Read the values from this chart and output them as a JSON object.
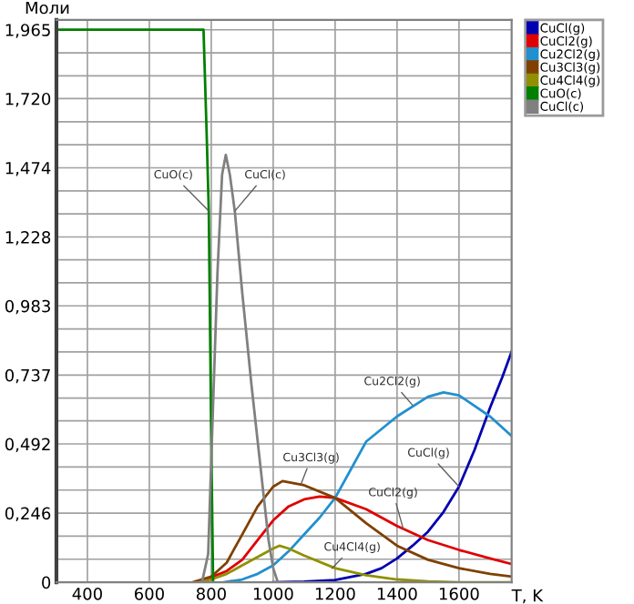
{
  "chart_data": {
    "type": "line",
    "ylabel": "Моли",
    "xlabel": "T, K",
    "xlim": [
      300,
      1770
    ],
    "xticks": [
      400,
      600,
      800,
      1000,
      1200,
      1400,
      1600
    ],
    "ylim": [
      0,
      2.0
    ],
    "yticks": [
      {
        "value": 0,
        "label": "0"
      },
      {
        "value": 0.082,
        "label": null
      },
      {
        "value": 0.164,
        "label": null
      },
      {
        "value": 0.246,
        "label": "0,246"
      },
      {
        "value": 0.328,
        "label": null
      },
      {
        "value": 0.41,
        "label": null
      },
      {
        "value": 0.492,
        "label": "0,492"
      },
      {
        "value": 0.574,
        "label": null
      },
      {
        "value": 0.655,
        "label": null
      },
      {
        "value": 0.737,
        "label": "0,737"
      },
      {
        "value": 0.819,
        "label": null
      },
      {
        "value": 0.901,
        "label": null
      },
      {
        "value": 0.983,
        "label": "0,983"
      },
      {
        "value": 1.065,
        "label": null
      },
      {
        "value": 1.147,
        "label": null
      },
      {
        "value": 1.228,
        "label": "1,228"
      },
      {
        "value": 1.31,
        "label": null
      },
      {
        "value": 1.392,
        "label": null
      },
      {
        "value": 1.474,
        "label": "1,474"
      },
      {
        "value": 1.556,
        "label": null
      },
      {
        "value": 1.638,
        "label": null
      },
      {
        "value": 1.72,
        "label": "1,720"
      },
      {
        "value": 1.801,
        "label": null
      },
      {
        "value": 1.883,
        "label": null
      },
      {
        "value": 1.965,
        "label": "1,965"
      }
    ],
    "grid": true,
    "legend": "top right",
    "marker": "none",
    "line_style": "solid",
    "series": [
      {
        "name": "CuCl(g)",
        "color": "#0000b0",
        "x": [
          1000,
          1100,
          1200,
          1300,
          1350,
          1400,
          1450,
          1500,
          1550,
          1600,
          1650,
          1700,
          1740,
          1770
        ],
        "values": [
          0,
          0.002,
          0.008,
          0.03,
          0.05,
          0.085,
          0.13,
          0.18,
          0.25,
          0.34,
          0.47,
          0.62,
          0.73,
          0.82
        ]
      },
      {
        "name": "CuCl2(g)",
        "color": "#e00000",
        "x": [
          760,
          850,
          900,
          950,
          1000,
          1050,
          1100,
          1150,
          1200,
          1300,
          1400,
          1500,
          1600,
          1700,
          1770
        ],
        "values": [
          0,
          0.04,
          0.08,
          0.15,
          0.22,
          0.27,
          0.295,
          0.305,
          0.3,
          0.26,
          0.2,
          0.15,
          0.115,
          0.085,
          0.065
        ]
      },
      {
        "name": "Cu2Cl2(g)",
        "color": "#2090d0",
        "x": [
          840,
          900,
          950,
          1000,
          1050,
          1100,
          1150,
          1200,
          1250,
          1300,
          1400,
          1500,
          1550,
          1600,
          1700,
          1770
        ],
        "values": [
          0,
          0.01,
          0.03,
          0.06,
          0.11,
          0.17,
          0.23,
          0.3,
          0.4,
          0.5,
          0.59,
          0.66,
          0.675,
          0.665,
          0.59,
          0.52
        ]
      },
      {
        "name": "Cu3Cl3(g)",
        "color": "#804000",
        "x": [
          740,
          800,
          850,
          900,
          950,
          1000,
          1030,
          1100,
          1200,
          1300,
          1400,
          1500,
          1600,
          1700,
          1770
        ],
        "values": [
          0,
          0.02,
          0.07,
          0.17,
          0.27,
          0.34,
          0.36,
          0.345,
          0.3,
          0.21,
          0.13,
          0.08,
          0.05,
          0.03,
          0.02
        ]
      },
      {
        "name": "Cu4Cl4(g)",
        "color": "#909000",
        "x": [
          760,
          800,
          850,
          900,
          950,
          1000,
          1020,
          1050,
          1100,
          1200,
          1300,
          1400,
          1500,
          1600,
          1770
        ],
        "values": [
          0,
          0.01,
          0.03,
          0.06,
          0.09,
          0.12,
          0.13,
          0.12,
          0.095,
          0.05,
          0.025,
          0.01,
          0.003,
          0,
          0
        ]
      },
      {
        "name": "CuO(c)",
        "color": "#008000",
        "x": [
          300,
          775,
          785,
          792,
          800,
          806
        ],
        "values": [
          1.965,
          1.965,
          1.6,
          1.32,
          0.5,
          0
        ]
      },
      {
        "name": "CuCl(c)",
        "color": "#808080",
        "x": [
          770,
          790,
          805,
          820,
          835,
          847,
          860,
          876,
          900,
          930,
          960,
          985,
          1000,
          1015
        ],
        "values": [
          0,
          0.1,
          0.6,
          1.1,
          1.45,
          1.52,
          1.45,
          1.32,
          1.03,
          0.7,
          0.4,
          0.15,
          0.05,
          0
        ]
      }
    ],
    "annotations": [
      {
        "text": "CuO(c)",
        "x": 792,
        "y": 1.32
      },
      {
        "text": "CuCl(c)",
        "x": 876,
        "y": 1.32
      },
      {
        "text": "Cu2Cl2(g)",
        "x": 1450,
        "y": 0.63
      },
      {
        "text": "CuCl(g)",
        "x": 1600,
        "y": 0.34
      },
      {
        "text": "CuCl2(g)",
        "x": 1420,
        "y": 0.19
      },
      {
        "text": "Cu3Cl3(g)",
        "x": 1090,
        "y": 0.35
      },
      {
        "text": "Cu4Cl4(g)",
        "x": 1190,
        "y": 0.05
      }
    ]
  }
}
